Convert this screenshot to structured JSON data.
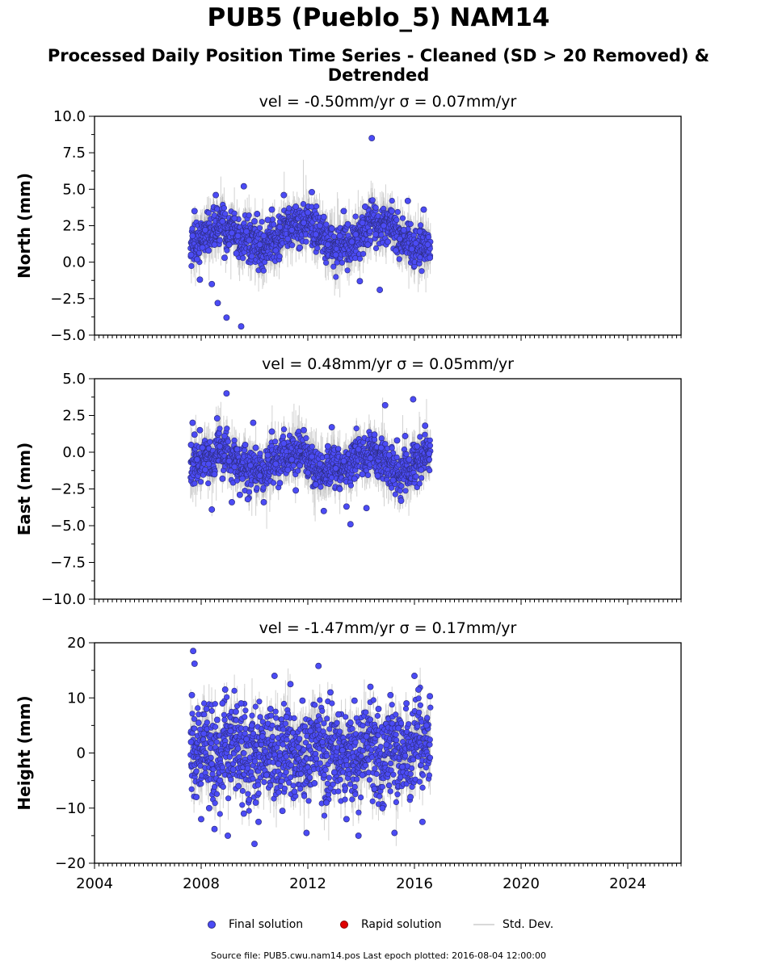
{
  "title": "PUB5 (Pueblo_5) NAM14",
  "subtitle": "Processed Daily Position Time Series - Cleaned (SD > 20 Removed) & Detrended",
  "legend": {
    "final": "Final solution",
    "rapid": "Rapid solution",
    "sd": "Std. Dev."
  },
  "footer": "Source file: PUB5.cwu.nam14.pos  Last epoch plotted: 2016-08-04 12:00:00",
  "colors": {
    "final_marker": "#4b4bf5",
    "final_edge": "#2d2d80",
    "rapid_marker": "#e00000",
    "std_dev": "#c8c8c8"
  },
  "chart_data": [
    {
      "type": "scatter",
      "title": "vel = -0.50mm/yr   σ = 0.07mm/yr",
      "ylabel": "North (mm)",
      "xlim": [
        2004,
        2026
      ],
      "ylim": [
        -5,
        10
      ],
      "yticks": [
        -5.0,
        -2.5,
        0.0,
        2.5,
        5.0,
        7.5,
        10.0
      ],
      "ytick_labels": [
        "−5.0",
        "−2.5",
        "0.0",
        "2.5",
        "5.0",
        "7.5",
        "10.0"
      ],
      "xticks": [
        2004,
        2008,
        2012,
        2016,
        2020,
        2024
      ],
      "data_range": [
        2007.6,
        2016.6
      ],
      "series": [
        {
          "name": "Final solution",
          "x": [
            2007.62,
            2007.68,
            2007.75,
            2007.85,
            2007.95,
            2008.05,
            2008.15,
            2008.28,
            2008.4,
            2008.5,
            2008.55,
            2008.62,
            2008.7,
            2008.8,
            2008.88,
            2008.95,
            2009.05,
            2009.15,
            2009.25,
            2009.32,
            2009.38,
            2009.5,
            2009.6,
            2009.7,
            2009.8,
            2009.9,
            2010.0,
            2010.1,
            2010.2,
            2010.35,
            2010.5,
            2010.65,
            2010.8,
            2010.95,
            2011.1,
            2011.25,
            2011.4,
            2011.55,
            2011.7,
            2011.85,
            2012.0,
            2012.15,
            2012.3,
            2012.45,
            2012.6,
            2012.75,
            2012.9,
            2013.05,
            2013.2,
            2013.35,
            2013.5,
            2013.65,
            2013.8,
            2013.95,
            2014.05,
            2014.15,
            2014.25,
            2014.4,
            2014.55,
            2014.7,
            2014.85,
            2015.0,
            2015.15,
            2015.3,
            2015.45,
            2015.6,
            2015.75,
            2015.9,
            2016.05,
            2016.2,
            2016.35,
            2016.5,
            2016.58
          ],
          "y": [
            0.5,
            1.8,
            3.5,
            0.2,
            -1.2,
            1.0,
            2.2,
            0.8,
            -1.5,
            1.2,
            4.6,
            -2.8,
            1.5,
            2.8,
            0.3,
            -3.8,
            1.2,
            2.0,
            3.0,
            0.6,
            1.8,
            -4.4,
            5.2,
            2.1,
            1.5,
            0.4,
            2.8,
            3.3,
            1.2,
            1.8,
            2.9,
            3.6,
            0.8,
            2.4,
            4.6,
            1.6,
            2.2,
            3.8,
            1.0,
            2.7,
            3.4,
            4.8,
            1.9,
            2.5,
            3.1,
            1.2,
            2.3,
            0.5,
            1.8,
            3.5,
            2.6,
            1.4,
            1.9,
            -1.3,
            2.7,
            3.8,
            1.2,
            8.5,
            1.9,
            -1.9,
            2.5,
            1.4,
            3.5,
            0.8,
            1.6,
            2.2,
            4.2,
            0.9,
            1.3,
            2.1,
            3.6,
            1.2,
            0.3
          ]
        }
      ]
    },
    {
      "type": "scatter",
      "title": "vel = 0.48mm/yr   σ = 0.05mm/yr",
      "ylabel": "East (mm)",
      "xlim": [
        2004,
        2026
      ],
      "ylim": [
        -10,
        5
      ],
      "yticks": [
        -10.0,
        -7.5,
        -5.0,
        -2.5,
        0.0,
        2.5,
        5.0
      ],
      "ytick_labels": [
        "−10.0",
        "−7.5",
        "−5.0",
        "−2.5",
        "0.0",
        "2.5",
        "5.0"
      ],
      "xticks": [
        2004,
        2008,
        2012,
        2016,
        2020,
        2024
      ],
      "data_range": [
        2007.6,
        2016.6
      ],
      "series": [
        {
          "name": "Final solution",
          "x": [
            2007.62,
            2007.68,
            2007.75,
            2007.85,
            2007.95,
            2008.05,
            2008.15,
            2008.28,
            2008.4,
            2008.5,
            2008.6,
            2008.7,
            2008.8,
            2008.88,
            2008.95,
            2009.05,
            2009.15,
            2009.25,
            2009.35,
            2009.45,
            2009.55,
            2009.65,
            2009.75,
            2009.85,
            2009.95,
            2010.05,
            2010.2,
            2010.35,
            2010.5,
            2010.65,
            2010.8,
            2010.95,
            2011.1,
            2011.25,
            2011.4,
            2011.55,
            2011.7,
            2011.85,
            2012.0,
            2012.15,
            2012.3,
            2012.45,
            2012.6,
            2012.75,
            2012.9,
            2013.05,
            2013.2,
            2013.35,
            2013.45,
            2013.6,
            2013.75,
            2013.9,
            2014.05,
            2014.2,
            2014.35,
            2014.5,
            2014.62,
            2014.75,
            2014.9,
            2015.05,
            2015.2,
            2015.35,
            2015.5,
            2015.65,
            2015.8,
            2015.95,
            2016.1,
            2016.25,
            2016.4,
            2016.55
          ],
          "y": [
            0.5,
            2.0,
            1.2,
            -0.5,
            1.5,
            0.3,
            -1.2,
            -0.8,
            -3.9,
            -1.5,
            2.3,
            0.4,
            -1.8,
            1.1,
            4.0,
            -0.6,
            -3.4,
            -1.0,
            0.2,
            -2.9,
            -1.8,
            0.5,
            -3.2,
            -0.9,
            2.0,
            0.3,
            -1.6,
            -3.4,
            -0.2,
            1.4,
            -0.8,
            -2.1,
            0.6,
            -1.2,
            -0.5,
            -2.6,
            -0.9,
            1.5,
            -1.4,
            -0.3,
            -2.2,
            -0.8,
            -4.0,
            0.4,
            1.7,
            -1.1,
            -2.5,
            -0.6,
            -3.7,
            -4.9,
            -1.8,
            0.2,
            -1.5,
            -3.8,
            -0.4,
            1.2,
            -1.6,
            0.3,
            3.2,
            -0.2,
            -1.9,
            0.8,
            -3.3,
            1.1,
            -0.5,
            3.6,
            0.4,
            -1.2,
            1.8,
            -0.1
          ]
        }
      ]
    },
    {
      "type": "scatter",
      "title": "vel = -1.47mm/yr   σ = 0.17mm/yr",
      "ylabel": "Height (mm)",
      "xlim": [
        2004,
        2026
      ],
      "ylim": [
        -20,
        20
      ],
      "yticks": [
        -20,
        -10,
        0,
        10,
        20
      ],
      "ytick_labels": [
        "−20",
        "−10",
        "0",
        "10",
        "20"
      ],
      "xticks": [
        2004,
        2008,
        2012,
        2016,
        2020,
        2024
      ],
      "xtick_labels": [
        "2004",
        "2008",
        "2012",
        "2016",
        "2020",
        "2024"
      ],
      "data_range": [
        2007.6,
        2016.6
      ],
      "series": [
        {
          "name": "Final solution",
          "x": [
            2007.62,
            2007.65,
            2007.7,
            2007.75,
            2007.82,
            2007.9,
            2008.0,
            2008.1,
            2008.2,
            2008.3,
            2008.4,
            2008.5,
            2008.6,
            2008.7,
            2008.8,
            2008.9,
            2009.0,
            2009.1,
            2009.2,
            2009.3,
            2009.4,
            2009.5,
            2009.6,
            2009.7,
            2009.8,
            2009.9,
            2010.0,
            2010.05,
            2010.15,
            2010.3,
            2010.45,
            2010.6,
            2010.75,
            2010.9,
            2011.05,
            2011.2,
            2011.35,
            2011.5,
            2011.65,
            2011.8,
            2011.95,
            2012.1,
            2012.25,
            2012.4,
            2012.55,
            2012.7,
            2012.85,
            2013.0,
            2013.15,
            2013.3,
            2013.45,
            2013.6,
            2013.75,
            2013.9,
            2014.05,
            2014.2,
            2014.35,
            2014.5,
            2014.65,
            2014.8,
            2014.95,
            2015.1,
            2015.25,
            2015.4,
            2015.55,
            2015.7,
            2015.85,
            2016.0,
            2016.15,
            2016.3,
            2016.45,
            2016.58
          ],
          "y": [
            2.0,
            10.5,
            18.5,
            16.2,
            -8.0,
            5.5,
            -12.0,
            3.5,
            8.0,
            -10.0,
            -2.0,
            -13.8,
            6.0,
            -5.0,
            9.0,
            11.5,
            -15.0,
            4.0,
            -3.0,
            7.5,
            -6.0,
            9.0,
            -11.0,
            2.5,
            -8.5,
            5.0,
            -16.5,
            -9.0,
            -12.5,
            3.0,
            -4.0,
            8.0,
            14.0,
            -2.0,
            -10.5,
            6.5,
            12.5,
            -7.0,
            1.0,
            9.5,
            -14.5,
            4.0,
            -5.5,
            15.8,
            2.0,
            -9.0,
            11.0,
            -3.5,
            7.0,
            0.5,
            -12.0,
            5.5,
            9.5,
            -15.0,
            -4.0,
            3.0,
            12.0,
            -6.5,
            8.0,
            -10.0,
            1.5,
            10.5,
            -14.5,
            4.5,
            -2.5,
            9.0,
            -8.0,
            14.0,
            11.5,
            -12.5,
            5.0,
            10.3
          ]
        }
      ]
    }
  ]
}
